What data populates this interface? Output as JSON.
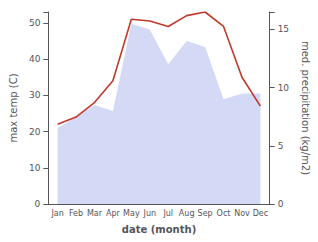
{
  "chart_data": {
    "type": "line",
    "xlabel": "date (month)",
    "ylabel": "max temp (C)",
    "y2label": "med. precipitation (kg/m2)",
    "categories": [
      "Jan",
      "Feb",
      "Mar",
      "Apr",
      "May",
      "Jun",
      "Jul",
      "Aug",
      "Sep",
      "Oct",
      "Nov",
      "Dec"
    ],
    "series": [
      {
        "type": "area",
        "axis": "y2",
        "color": "#b0bcee",
        "values": [
          6.5,
          7.5,
          8.5,
          8.0,
          15.5,
          15.0,
          12.0,
          14.0,
          13.5,
          9.0,
          9.5,
          9.5
        ]
      },
      {
        "type": "line",
        "axis": "y",
        "color": "#c0392b",
        "values": [
          22,
          24,
          28,
          34,
          51,
          50.5,
          49,
          52,
          53,
          49,
          35,
          27
        ]
      }
    ],
    "ylim": [
      0,
      53
    ],
    "yticks": [
      0,
      10,
      20,
      30,
      40,
      50
    ],
    "y2lim": [
      0,
      16.5
    ],
    "y2ticks": [
      0,
      5,
      10,
      15
    ],
    "grid": false
  }
}
